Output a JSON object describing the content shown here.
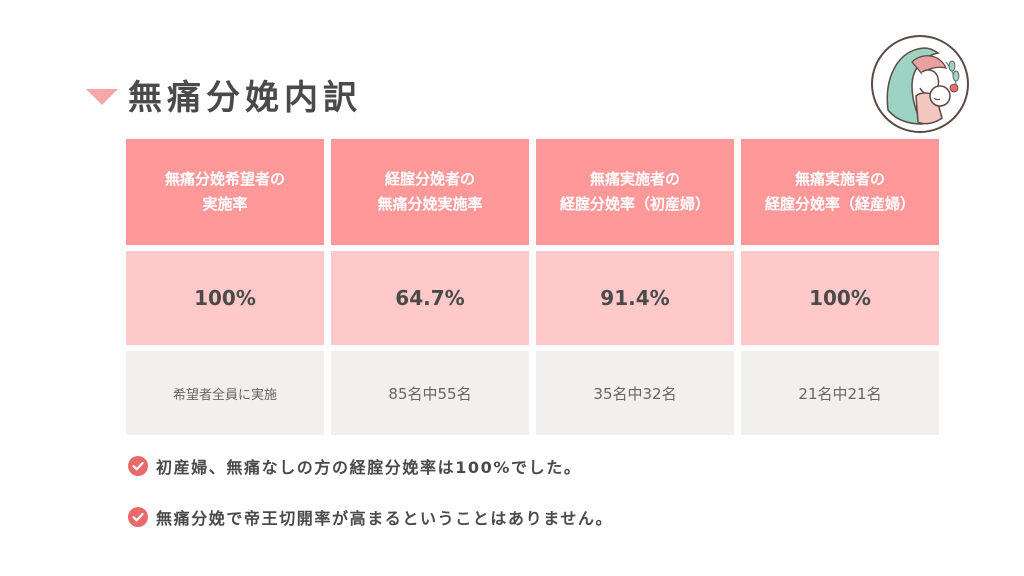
{
  "title": "無痛分娩内訳",
  "table": {
    "headers": [
      "無痛分娩希望者の\n実施率",
      "経腟分娩者の\n無痛分娩実施率",
      "無痛実施者の\n経腟分娩率（初産婦）",
      "無痛実施者の\n経腟分娩率（経産婦）"
    ],
    "values": [
      "100%",
      "64.7%",
      "91.4%",
      "100%"
    ],
    "details": [
      "希望者全員に実施",
      "85名中55名",
      "35名中32名",
      "21名中21名"
    ]
  },
  "notes": [
    "初産婦、無痛なしの方の経腟分娩率は100%でした。",
    "無痛分娩で帝王切開率が高まるということはありません。"
  ],
  "icons": {
    "logo": "mother-baby-logo-icon",
    "check": "check-circle-icon",
    "title_marker": "triangle-down-icon"
  },
  "colors": {
    "header_bg": "#ff9999",
    "value_bg": "#ffc9c9",
    "detail_bg": "#f2f0ef",
    "accent": "#e86a6a",
    "title_marker": "#f6a7a7",
    "text": "#4a4a4a"
  }
}
